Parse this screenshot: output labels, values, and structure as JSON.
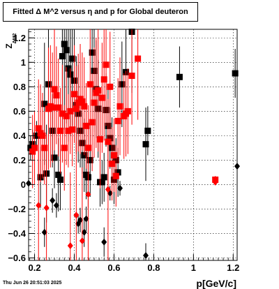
{
  "footer": {
    "timestamp": "Thu Jun 26 20:51:03 2025"
  },
  "chart_data": {
    "type": "scatter",
    "title": "Fitted Δ M^2 versus η and p for Global deuteron",
    "xlabel": "p[GeV/c]",
    "ylabel": "Z",
    "ylabel_sub": "ΔM2",
    "xlim": [
      0.17,
      1.22
    ],
    "ylim": [
      -0.62,
      1.27
    ],
    "grid": true,
    "x_ticks": [
      {
        "value": 0.2,
        "label": "0.2"
      },
      {
        "value": 0.4,
        "label": "0.4"
      },
      {
        "value": 0.6,
        "label": "0.6"
      },
      {
        "value": 0.8,
        "label": "0.8"
      },
      {
        "value": 1.0,
        "label": "1"
      },
      {
        "value": 1.2,
        "label": "1.2"
      }
    ],
    "y_ticks": [
      {
        "value": -0.6,
        "label": "−0.6"
      },
      {
        "value": -0.4,
        "label": "−0.4"
      },
      {
        "value": -0.2,
        "label": "−0.2"
      },
      {
        "value": 0.0,
        "label": "0"
      },
      {
        "value": 0.2,
        "label": "0.2"
      },
      {
        "value": 0.4,
        "label": "0.4"
      },
      {
        "value": 0.6,
        "label": "0.6"
      },
      {
        "value": 0.8,
        "label": "0.8"
      },
      {
        "value": 1.0,
        "label": "1"
      },
      {
        "value": 1.2,
        "label": "1.2"
      }
    ],
    "colors": {
      "black": "#000000",
      "red": "#ff0000"
    },
    "series": [
      {
        "color": "black",
        "marker": "square",
        "points": [
          [
            0.18,
            0.3,
            0.1
          ],
          [
            0.19,
            0.33,
            0.12
          ],
          [
            0.21,
            0.4,
            0.12
          ],
          [
            0.23,
            0.06,
            0.25
          ],
          [
            0.25,
            0.66,
            0.5
          ],
          [
            0.26,
            0.09,
            0.4
          ],
          [
            0.27,
            0.82,
            0.5
          ],
          [
            0.29,
            0.44,
            0.3
          ],
          [
            0.3,
            0.22,
            0.25
          ],
          [
            0.32,
            0.08,
            0.3
          ],
          [
            0.33,
            0.04,
            0.25
          ],
          [
            0.34,
            1.05,
            0.6
          ],
          [
            0.35,
            1.15,
            0.7
          ],
          [
            0.36,
            1.1,
            0.6
          ],
          [
            0.37,
            0.95,
            0.6
          ],
          [
            0.38,
            0.9,
            0.5
          ],
          [
            0.39,
            1.03,
            0.55
          ],
          [
            0.4,
            0.85,
            0.45
          ],
          [
            0.41,
            0.65,
            0.4
          ],
          [
            0.42,
            0.58,
            0.4
          ],
          [
            0.43,
            0.44,
            0.3
          ],
          [
            0.44,
            0.34,
            0.25
          ],
          [
            0.45,
            0.24,
            0.3
          ],
          [
            0.46,
            0.08,
            0.2
          ],
          [
            0.47,
            0.06,
            0.25
          ],
          [
            0.48,
            0.2,
            0.3
          ],
          [
            0.49,
            1.08,
            0.4
          ],
          [
            0.5,
            0.93,
            0.5
          ],
          [
            0.51,
            0.78,
            0.4
          ],
          [
            0.52,
            0.62,
            0.4
          ],
          [
            0.53,
            0.02,
            0.2
          ],
          [
            0.54,
            0.02,
            0.18
          ],
          [
            0.55,
            0.06,
            0.2
          ],
          [
            0.56,
            0.61,
            0.3
          ],
          [
            0.57,
            0.48,
            0.3
          ],
          [
            0.58,
            0.38,
            0.25
          ],
          [
            0.59,
            0.3,
            0.25
          ],
          [
            0.6,
            0.04,
            0.2
          ],
          [
            0.61,
            0.2,
            0.18
          ],
          [
            0.62,
            0.1,
            0.2
          ],
          [
            0.64,
            0.82,
            0.35
          ],
          [
            0.66,
            0.92,
            0.4
          ],
          [
            0.69,
            1.25,
            0.5
          ],
          [
            0.76,
            0.33,
            0.3
          ],
          [
            0.77,
            0.44,
            0.2
          ],
          [
            0.93,
            0.88,
            0.25
          ],
          [
            1.21,
            0.91,
            0.2
          ]
        ]
      },
      {
        "color": "black",
        "marker": "diamond",
        "points": [
          [
            0.17,
            0.01,
            0.08
          ],
          [
            0.25,
            -0.39,
            0.12
          ],
          [
            0.29,
            -0.13,
            0.1
          ],
          [
            0.31,
            -0.17,
            0.1
          ],
          [
            0.42,
            -0.32,
            0.08
          ],
          [
            0.43,
            -0.29,
            0.1
          ],
          [
            0.45,
            -0.39,
            0.12
          ],
          [
            0.46,
            -0.28,
            0.1
          ],
          [
            0.55,
            -0.47,
            0.12
          ],
          [
            0.58,
            -0.07,
            0.06
          ],
          [
            0.63,
            -0.03,
            0.06
          ],
          [
            0.76,
            -0.58,
            0.1
          ],
          [
            1.22,
            0.15,
            0.08
          ]
        ]
      },
      {
        "color": "red",
        "marker": "square",
        "points": [
          [
            0.19,
            0.27,
            0.3
          ],
          [
            0.2,
            0.3,
            0.3
          ],
          [
            0.22,
            0.46,
            0.4
          ],
          [
            0.23,
            0.42,
            0.4
          ],
          [
            0.24,
            0.4,
            0.35
          ],
          [
            0.25,
            0.3,
            0.3
          ],
          [
            0.27,
            0.62,
            0.5
          ],
          [
            0.28,
            0.64,
            0.5
          ],
          [
            0.29,
            0.63,
            0.45
          ],
          [
            0.3,
            0.78,
            0.5
          ],
          [
            0.31,
            0.73,
            0.4
          ],
          [
            0.32,
            0.63,
            0.4
          ],
          [
            0.33,
            0.44,
            0.35
          ],
          [
            0.34,
            0.58,
            0.4
          ],
          [
            0.35,
            0.3,
            0.35
          ],
          [
            0.36,
            0.56,
            0.4
          ],
          [
            0.37,
            0.44,
            0.3
          ],
          [
            0.38,
            0.6,
            0.35
          ],
          [
            0.39,
            0.45,
            0.3
          ],
          [
            0.4,
            0.74,
            0.4
          ],
          [
            0.41,
            0.62,
            0.35
          ],
          [
            0.42,
            0.67,
            0.4
          ],
          [
            0.43,
            0.7,
            0.45
          ],
          [
            0.44,
            0.68,
            0.4
          ],
          [
            0.45,
            0.64,
            0.4
          ],
          [
            0.46,
            0.48,
            0.35
          ],
          [
            0.47,
            0.3,
            0.35
          ],
          [
            0.48,
            0.82,
            0.5
          ],
          [
            0.49,
            0.51,
            0.4
          ],
          [
            0.5,
            0.67,
            0.45
          ],
          [
            0.51,
            0.75,
            0.45
          ],
          [
            0.52,
            0.77,
            0.5
          ],
          [
            0.53,
            0.37,
            0.4
          ],
          [
            0.54,
            0.71,
            0.45
          ],
          [
            0.55,
            0.86,
            0.5
          ],
          [
            0.56,
            0.98,
            0.5
          ],
          [
            0.57,
            0.35,
            0.35
          ],
          [
            0.58,
            0.8,
            0.45
          ],
          [
            0.59,
            0.17,
            0.3
          ],
          [
            0.6,
            0.24,
            0.3
          ],
          [
            0.61,
            0.07,
            0.25
          ],
          [
            0.62,
            0.52,
            0.35
          ],
          [
            0.63,
            0.64,
            0.4
          ],
          [
            0.65,
            0.56,
            0.35
          ],
          [
            0.66,
            0.58,
            0.35
          ],
          [
            0.67,
            0.6,
            0.35
          ],
          [
            0.69,
            0.89,
            0.4
          ],
          [
            0.72,
            1.03,
            0.5
          ],
          [
            1.11,
            0.04,
            0.03
          ]
        ]
      },
      {
        "color": "red",
        "marker": "diamond",
        "points": [
          [
            0.22,
            -0.17,
            0.6
          ],
          [
            0.26,
            -0.19,
            0.6
          ],
          [
            0.38,
            -0.5,
            0.6
          ],
          [
            0.41,
            -0.25,
            0.6
          ],
          [
            0.44,
            -0.46,
            0.6
          ],
          [
            0.47,
            -0.08,
            0.6
          ],
          [
            0.57,
            -0.04,
            0.6
          ],
          [
            1.11,
            0.02,
            0.02
          ]
        ]
      }
    ]
  }
}
